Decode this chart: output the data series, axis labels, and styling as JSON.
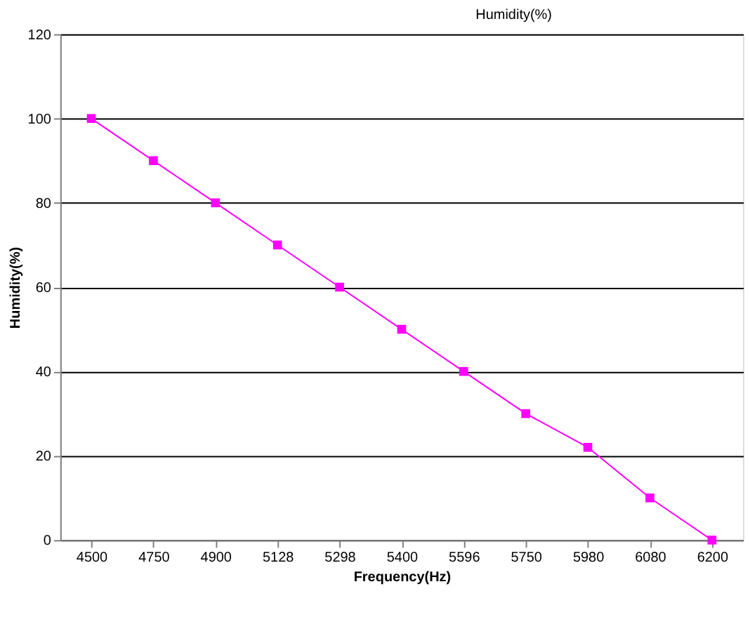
{
  "chart_data": {
    "type": "line",
    "title": "Humidity(%)",
    "xlabel": "Frequency(Hz)",
    "ylabel": "Humidity(%)",
    "categories": [
      "4500",
      "4750",
      "4900",
      "5128",
      "5298",
      "5400",
      "5596",
      "5750",
      "5980",
      "6080",
      "6200"
    ],
    "series": [
      {
        "color": "#ff00ff",
        "values": [
          100,
          90,
          80,
          70,
          60,
          50,
          40,
          30,
          22,
          10,
          0
        ]
      }
    ],
    "ylim": [
      0,
      120
    ],
    "yticks": [
      0,
      20,
      40,
      60,
      80,
      100,
      120
    ],
    "grid": "y",
    "legend": false,
    "marker": "square",
    "line_style": "solid"
  }
}
